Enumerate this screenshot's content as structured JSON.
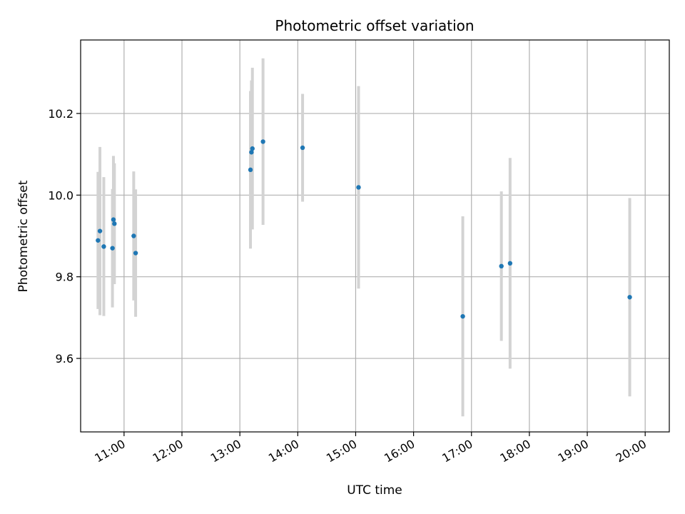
{
  "chart_data": {
    "type": "scatter",
    "title": "Photometric offset variation",
    "xlabel": "UTC time",
    "ylabel": "Photometric offset",
    "grid": true,
    "xlim": [
      "10:15",
      "20:25"
    ],
    "ylim": [
      9.42,
      10.38
    ],
    "x_ticks": [
      "11:00",
      "12:00",
      "13:00",
      "14:00",
      "15:00",
      "16:00",
      "17:00",
      "18:00",
      "19:00",
      "20:00"
    ],
    "y_ticks": [
      "9.6",
      "9.8",
      "10.0",
      "10.2"
    ],
    "y_tick_values": [
      9.6,
      9.8,
      10.0,
      10.2
    ],
    "point_color": "#1f77b4",
    "errorbar_color": "#d3d3d3",
    "points": [
      {
        "x": "10:33",
        "y": 9.889,
        "yerr": 0.168
      },
      {
        "x": "10:35",
        "y": 9.912,
        "yerr": 0.206
      },
      {
        "x": "10:39",
        "y": 9.874,
        "yerr": 0.17
      },
      {
        "x": "10:48",
        "y": 9.87,
        "yerr": 0.145
      },
      {
        "x": "10:49",
        "y": 9.94,
        "yerr": 0.156
      },
      {
        "x": "10:50",
        "y": 9.93,
        "yerr": 0.148
      },
      {
        "x": "11:10",
        "y": 9.9,
        "yerr": 0.158
      },
      {
        "x": "11:12",
        "y": 9.858,
        "yerr": 0.156
      },
      {
        "x": "13:11",
        "y": 10.062,
        "yerr": 0.193
      },
      {
        "x": "13:12",
        "y": 10.105,
        "yerr": 0.176
      },
      {
        "x": "13:13",
        "y": 10.114,
        "yerr": 0.198
      },
      {
        "x": "13:24",
        "y": 10.131,
        "yerr": 0.204
      },
      {
        "x": "14:05",
        "y": 10.116,
        "yerr": 0.132
      },
      {
        "x": "15:03",
        "y": 10.019,
        "yerr": 0.248
      },
      {
        "x": "16:51",
        "y": 9.703,
        "yerr": 0.245
      },
      {
        "x": "17:31",
        "y": 9.826,
        "yerr": 0.183
      },
      {
        "x": "17:40",
        "y": 9.833,
        "yerr": 0.258
      },
      {
        "x": "19:44",
        "y": 9.75,
        "yerr": 0.243
      }
    ]
  }
}
